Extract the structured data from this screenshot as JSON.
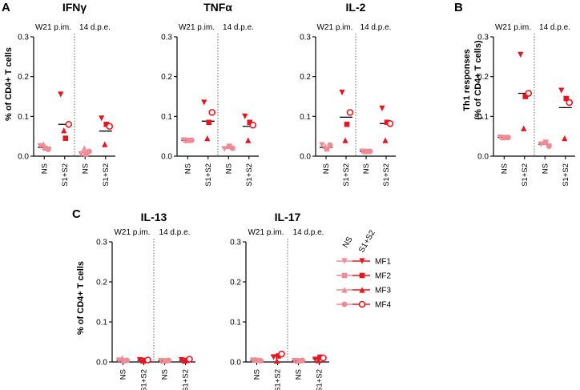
{
  "colors": {
    "ns": "#f08a94",
    "stim": "#e8141e",
    "axis": "#000000"
  },
  "panel_letters": {
    "a": "A",
    "b": "B",
    "c": "C"
  },
  "ylabels": {
    "cd4": "% of CD4+ T cells",
    "th1_line1": "Th1 responses",
    "th1_line2": "(% of CD4+ T cells)"
  },
  "legend": {
    "head_ns": "NS",
    "head_stim": "S1+S2",
    "items": [
      {
        "label": "MF1",
        "shape": "triangle-down"
      },
      {
        "label": "MF2",
        "shape": "square"
      },
      {
        "label": "MF3",
        "shape": "triangle-up"
      },
      {
        "label": "MF4",
        "shape": "circle"
      }
    ]
  },
  "chart_data": [
    {
      "id": "ifng",
      "type": "scatter",
      "title": "IFNγ",
      "ylabel": "% of CD4+ T cells",
      "ylim": [
        0,
        0.3
      ],
      "yticks": [
        "0.0",
        "0.1",
        "0.2",
        "0.3"
      ],
      "groups": [
        "W21 p.im.",
        "14 d.p.e."
      ],
      "categories": [
        "NS",
        "S1+S2",
        "NS",
        "S1+S2"
      ],
      "means": [
        0.022,
        0.08,
        0.01,
        0.063
      ],
      "series": [
        {
          "name": "MF1",
          "shape": "triangle-down",
          "values": [
            0.025,
            0.155,
            0.005,
            0.095
          ]
        },
        {
          "name": "MF2",
          "shape": "square",
          "values": [
            0.02,
            0.045,
            0.005,
            0.08
          ]
        },
        {
          "name": "MF3",
          "shape": "triangle-up",
          "values": [
            0.03,
            0.065,
            0.02,
            0.03
          ]
        },
        {
          "name": "MF4",
          "shape": "circle",
          "values": [
            0.017,
            0.08,
            0.012,
            0.075
          ]
        }
      ]
    },
    {
      "id": "tnfa",
      "type": "scatter",
      "title": "TNFα",
      "ylabel": "",
      "ylim": [
        0,
        0.3
      ],
      "yticks": [
        "0.0",
        "0.1",
        "0.2",
        "0.3"
      ],
      "groups": [
        "W21 p.im.",
        "14 d.p.e."
      ],
      "categories": [
        "NS",
        "S1+S2",
        "NS",
        "S1+S2"
      ],
      "means": [
        0.04,
        0.088,
        0.022,
        0.075
      ],
      "series": [
        {
          "name": "MF1",
          "shape": "triangle-down",
          "values": [
            0.04,
            0.135,
            0.018,
            0.1
          ]
        },
        {
          "name": "MF2",
          "shape": "square",
          "values": [
            0.04,
            0.085,
            0.025,
            0.085
          ]
        },
        {
          "name": "MF3",
          "shape": "triangle-up",
          "values": [
            0.04,
            0.045,
            0.025,
            0.04
          ]
        },
        {
          "name": "MF4",
          "shape": "circle",
          "values": [
            0.04,
            0.11,
            0.02,
            0.078
          ]
        }
      ]
    },
    {
      "id": "il2",
      "type": "scatter",
      "title": "IL-2",
      "ylabel": "",
      "ylim": [
        0,
        0.3
      ],
      "yticks": [
        "0.0",
        "0.1",
        "0.2",
        "0.3"
      ],
      "groups": [
        "W21 p.im.",
        "14 d.p.e."
      ],
      "categories": [
        "NS",
        "S1+S2",
        "NS",
        "S1+S2"
      ],
      "means": [
        0.022,
        0.098,
        0.012,
        0.082
      ],
      "series": [
        {
          "name": "MF1",
          "shape": "triangle-down",
          "values": [
            0.028,
            0.16,
            0.012,
            0.12
          ]
        },
        {
          "name": "MF2",
          "shape": "square",
          "values": [
            0.018,
            0.08,
            0.012,
            0.085
          ]
        },
        {
          "name": "MF3",
          "shape": "triangle-up",
          "values": [
            0.025,
            0.04,
            0.012,
            0.04
          ]
        },
        {
          "name": "MF4",
          "shape": "circle",
          "values": [
            0.028,
            0.11,
            0.012,
            0.082
          ]
        }
      ]
    },
    {
      "id": "th1",
      "type": "scatter",
      "title": "",
      "ylabel": "Th1 responses (% of CD4+ T cells)",
      "ylim": [
        0,
        0.3
      ],
      "yticks": [
        "0.0",
        "0.1",
        "0.2",
        "0.3"
      ],
      "groups": [
        "W21 p.im.",
        "14 d.p.e."
      ],
      "categories": [
        "NS",
        "S1+S2",
        "NS",
        "S1+S2"
      ],
      "means": [
        0.047,
        0.158,
        0.03,
        0.122
      ],
      "series": [
        {
          "name": "MF1",
          "shape": "triangle-down",
          "values": [
            0.047,
            0.255,
            0.03,
            0.165
          ]
        },
        {
          "name": "MF2",
          "shape": "square",
          "values": [
            0.047,
            0.15,
            0.035,
            0.145
          ]
        },
        {
          "name": "MF3",
          "shape": "triangle-up",
          "values": [
            0.047,
            0.07,
            0.035,
            0.045
          ]
        },
        {
          "name": "MF4",
          "shape": "circle",
          "values": [
            0.047,
            0.158,
            0.025,
            0.135
          ]
        }
      ]
    },
    {
      "id": "il13",
      "type": "scatter",
      "title": "IL-13",
      "ylabel": "% of CD4+ T cells",
      "ylim": [
        0,
        0.3
      ],
      "yticks": [
        "0.0",
        "0.1",
        "0.2",
        "0.3"
      ],
      "groups": [
        "W21 p.im.",
        "14 d.p.e."
      ],
      "categories": [
        "NS",
        "S1+S2",
        "NS",
        "S1+S2"
      ],
      "means": [
        0.004,
        0.004,
        0.003,
        0.004
      ],
      "series": [
        {
          "name": "MF1",
          "shape": "triangle-down",
          "values": [
            0.004,
            0.005,
            0.003,
            0.005
          ]
        },
        {
          "name": "MF2",
          "shape": "square",
          "values": [
            0.003,
            0.004,
            0.003,
            0.004
          ]
        },
        {
          "name": "MF3",
          "shape": "triangle-up",
          "values": [
            0.01,
            0.003,
            0.003,
            0.003
          ]
        },
        {
          "name": "MF4",
          "shape": "circle",
          "values": [
            0.004,
            0.005,
            0.004,
            0.007
          ]
        }
      ]
    },
    {
      "id": "il17",
      "type": "scatter",
      "title": "IL-17",
      "ylabel": "",
      "ylim": [
        0,
        0.3
      ],
      "yticks": [
        "0.0",
        "0.1",
        "0.2",
        "0.3"
      ],
      "groups": [
        "W21 p.im.",
        "14 d.p.e."
      ],
      "categories": [
        "NS",
        "S1+S2",
        "NS",
        "S1+S2"
      ],
      "means": [
        0.004,
        0.015,
        0.003,
        0.008
      ],
      "series": [
        {
          "name": "MF1",
          "shape": "triangle-down",
          "values": [
            0.004,
            0.012,
            0.003,
            0.006
          ]
        },
        {
          "name": "MF2",
          "shape": "square",
          "values": [
            0.004,
            0.015,
            0.003,
            0.012
          ]
        },
        {
          "name": "MF3",
          "shape": "triangle-up",
          "values": [
            0.006,
            0.003,
            0.003,
            0.004
          ]
        },
        {
          "name": "MF4",
          "shape": "circle",
          "values": [
            0.003,
            0.02,
            0.004,
            0.01
          ]
        }
      ]
    }
  ]
}
